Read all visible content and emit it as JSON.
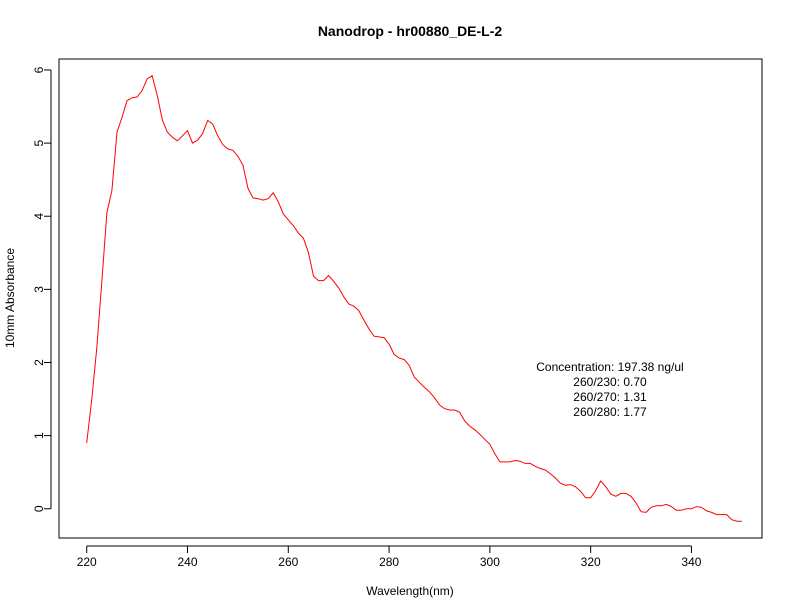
{
  "chart_data": {
    "type": "line",
    "title": "Nanodrop - hr00880_DE-L-2",
    "xlabel": "Wavelength(nm)",
    "ylabel": "10mm Absorbance",
    "xlim": [
      214.5,
      354
    ],
    "ylim": [
      -0.4,
      6.15
    ],
    "x_ticks": [
      220,
      240,
      260,
      280,
      300,
      320,
      340
    ],
    "y_ticks": [
      0,
      1,
      2,
      3,
      4,
      5,
      6
    ],
    "grid": false,
    "legend": "none",
    "line_color": "#ff0000",
    "annotations": [
      "Concentration: 197.38 ng/ul",
      "260/230: 0.70",
      "260/270: 1.31",
      "260/280: 1.77"
    ],
    "series": [
      {
        "x": [
          220,
          221,
          222,
          223,
          224,
          225,
          226,
          227,
          228,
          229,
          230,
          231,
          232,
          233,
          234,
          235,
          236,
          237,
          238,
          239,
          240,
          241,
          242,
          243,
          244,
          245,
          246,
          247,
          248,
          249,
          250,
          251,
          252,
          253,
          254,
          255,
          256,
          257,
          258,
          259,
          260,
          261,
          262,
          263,
          264,
          265,
          266,
          267,
          268,
          269,
          270,
          271,
          272,
          273,
          274,
          275,
          276,
          277,
          278,
          279,
          280,
          281,
          282,
          283,
          284,
          285,
          286,
          287,
          288,
          289,
          290,
          291,
          292,
          293,
          294,
          295,
          296,
          297,
          298,
          299,
          300,
          301,
          302,
          303,
          304,
          305,
          306,
          307,
          308,
          309,
          310,
          311,
          312,
          313,
          314,
          315,
          316,
          317,
          318,
          319,
          320,
          321,
          322,
          323,
          324,
          325,
          326,
          327,
          328,
          329,
          330,
          331,
          332,
          333,
          334,
          335,
          336,
          337,
          338,
          339,
          340,
          341,
          342,
          343,
          344,
          345,
          346,
          347,
          348,
          349,
          350
        ],
        "y": [
          0.9,
          1.5,
          2.2,
          3.1,
          4.05,
          4.35,
          5.15,
          5.35,
          5.58,
          5.62,
          5.63,
          5.72,
          5.88,
          5.92,
          5.65,
          5.32,
          5.15,
          5.08,
          5.03,
          5.1,
          5.17,
          5.0,
          5.04,
          5.13,
          5.31,
          5.26,
          5.1,
          4.98,
          4.92,
          4.9,
          4.82,
          4.7,
          4.38,
          4.25,
          4.24,
          4.22,
          4.24,
          4.32,
          4.2,
          4.03,
          3.95,
          3.87,
          3.77,
          3.7,
          3.5,
          3.18,
          3.12,
          3.12,
          3.19,
          3.11,
          3.02,
          2.9,
          2.8,
          2.77,
          2.71,
          2.58,
          2.46,
          2.36,
          2.35,
          2.34,
          2.25,
          2.11,
          2.06,
          2.04,
          1.96,
          1.8,
          1.73,
          1.66,
          1.6,
          1.52,
          1.42,
          1.37,
          1.35,
          1.35,
          1.32,
          1.2,
          1.13,
          1.08,
          1.02,
          0.95,
          0.88,
          0.75,
          0.64,
          0.64,
          0.64,
          0.66,
          0.65,
          0.62,
          0.62,
          0.58,
          0.55,
          0.53,
          0.48,
          0.42,
          0.35,
          0.32,
          0.33,
          0.3,
          0.24,
          0.15,
          0.15,
          0.25,
          0.38,
          0.3,
          0.2,
          0.17,
          0.21,
          0.21,
          0.17,
          0.08,
          -0.04,
          -0.05,
          0.02,
          0.04,
          0.04,
          0.06,
          0.03,
          -0.02,
          -0.02,
          0.0,
          0.0,
          0.03,
          0.02,
          -0.03,
          -0.05,
          -0.08,
          -0.08,
          -0.08,
          -0.15,
          -0.17,
          -0.17
        ]
      }
    ]
  }
}
